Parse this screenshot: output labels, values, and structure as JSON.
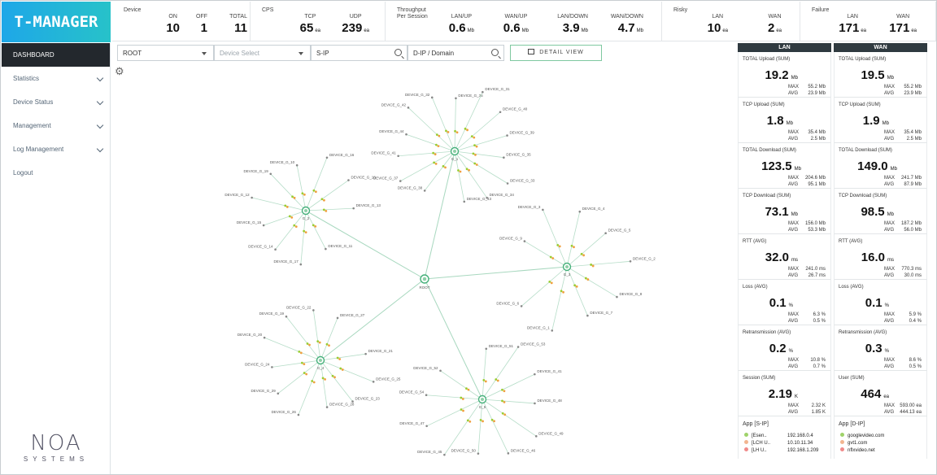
{
  "app": {
    "logo": "T-MANAGER",
    "company_mark": "NOA",
    "company_sub": "SYSTEMS"
  },
  "sidebar": {
    "items": [
      {
        "label": "DASHBOARD",
        "active": true,
        "chevron": false
      },
      {
        "label": "Statistics",
        "chevron": true
      },
      {
        "label": "Device Status",
        "chevron": true
      },
      {
        "label": "Management",
        "chevron": true
      },
      {
        "label": "Log Management",
        "chevron": true
      },
      {
        "label": "Logout",
        "chevron": false
      }
    ]
  },
  "summary": {
    "device": {
      "title": "Device",
      "stats": [
        {
          "label": "ON",
          "value": "10"
        },
        {
          "label": "OFF",
          "value": "1"
        },
        {
          "label": "TOTAL",
          "value": "11"
        }
      ]
    },
    "cps": {
      "title": "CPS",
      "stats": [
        {
          "label": "TCP",
          "value": "65",
          "unit": "ea"
        },
        {
          "label": "UDP",
          "value": "239",
          "unit": "ea"
        }
      ]
    },
    "throughput": {
      "title": "Throughput\nPer Session",
      "stats": [
        {
          "label": "LAN/UP",
          "value": "0.6",
          "unit": "Mb"
        },
        {
          "label": "WAN/UP",
          "value": "0.6",
          "unit": "Mb"
        },
        {
          "label": "LAN/DOWN",
          "value": "3.9",
          "unit": "Mb"
        },
        {
          "label": "WAN/DOWN",
          "value": "4.7",
          "unit": "Mb"
        }
      ]
    },
    "risky": {
      "title": "Risky",
      "stats": [
        {
          "label": "LAN",
          "value": "10",
          "unit": "ea"
        },
        {
          "label": "WAN",
          "value": "2",
          "unit": "ea"
        }
      ]
    },
    "failure": {
      "title": "Failure",
      "stats": [
        {
          "label": "LAN",
          "value": "171",
          "unit": "ea"
        },
        {
          "label": "WAN",
          "value": "171",
          "unit": "ea"
        }
      ]
    }
  },
  "filters": {
    "root": "ROOT",
    "device_select": "Device Select",
    "sip": "S-IP",
    "dip": "D-IP / Domain",
    "detail_button": "DETAIL VIEW"
  },
  "topology": {
    "root_label": "ROOT",
    "hubs": [
      {
        "label": "G_1",
        "devices": [
          "DEVICE_G_38",
          "DEVICE_G_37",
          "DEVICE_G_41",
          "DEVICE_G_44",
          "DEVICE_G_42",
          "DEVICE_G_32",
          "DEVICE_G_36",
          "DEVICE_G_31",
          "DEVICE_G_40",
          "DEVICE_G_39",
          "DEVICE_G_35",
          "DEVICE_G_33",
          "DEVICE_G_34",
          "DEVICE_G_43"
        ]
      },
      {
        "label": "G_2",
        "devices": [
          "DEVICE_G_11",
          "DEVICE_G_17",
          "DEVICE_G_14",
          "DEVICE_G_15",
          "DEVICE_G_12",
          "DEVICE_G_19",
          "DEVICE_G_10",
          "DEVICE_G_16",
          "DEVICE_G_18",
          "DEVICE_G_13"
        ]
      },
      {
        "label": "G_3",
        "devices": [
          "DEVICE_G_9",
          "DEVICE_G_3",
          "DEVICE_G_4",
          "DEVICE_G_5",
          "DEVICE_G_2",
          "DEVICE_G_8",
          "DEVICE_G_7",
          "DEVICE_G_1",
          "DEVICE_G_6"
        ]
      },
      {
        "label": "G_4",
        "devices": [
          "DEVICE_G_21",
          "DEVICE_G_25",
          "DEVICE_G_23",
          "DEVICE_G_28",
          "DEVICE_G_26",
          "DEVICE_G_29",
          "DEVICE_G_24",
          "DEVICE_G_20",
          "DEVICE_G_19",
          "DEVICE_G_22",
          "DEVICE_G_27"
        ]
      },
      {
        "label": "G_5",
        "devices": [
          "DEVICE_G_51",
          "DEVICE_G_53",
          "DEVICE_G_41",
          "DEVICE_G_48",
          "DEVICE_G_49",
          "DEVICE_G_46",
          "DEVICE_G_50",
          "DEVICE_G_45",
          "DEVICE_G_47",
          "DEVICE_G_54",
          "DEVICE_G_52"
        ]
      }
    ]
  },
  "panels": {
    "lan": {
      "header": "LAN",
      "cards": [
        {
          "title": "TOTAL Upload (SUM)",
          "value": "19.2",
          "unit": "Mb",
          "max": "55.2 Mb",
          "avg": "23.9 Mb"
        },
        {
          "title": "TCP Upload (SUM)",
          "value": "1.8",
          "unit": "Mb",
          "max": "35.4 Mb",
          "avg": "2.5 Mb"
        },
        {
          "title": "TOTAL Download (SUM)",
          "value": "123.5",
          "unit": "Mb",
          "max": "204.6 Mb",
          "avg": "95.1 Mb"
        },
        {
          "title": "TCP Download (SUM)",
          "value": "73.1",
          "unit": "Mb",
          "max": "156.0 Mb",
          "avg": "53.3 Mb"
        },
        {
          "title": "RTT (AVG)",
          "value": "32.0",
          "unit": "ms",
          "max": "241.0 ms",
          "avg": "26.7 ms"
        },
        {
          "title": "Loss (AVG)",
          "value": "0.1",
          "unit": "%",
          "max": "6.3 %",
          "avg": "0.5 %"
        },
        {
          "title": "Retransmission (AVG)",
          "value": "0.2",
          "unit": "%",
          "max": "10.8 %",
          "avg": "0.7 %"
        },
        {
          "title": "Session (SUM)",
          "value": "2.19",
          "unit": "K",
          "max": "2.32 K",
          "avg": "1.85 K"
        }
      ],
      "app": {
        "title": "App [S-IP]",
        "rows": [
          {
            "name": "[Esen..",
            "ip": "192.168.0.4",
            "color": "#9fd36a"
          },
          {
            "name": "[LCH U..",
            "ip": "10.10.11.34",
            "color": "#f2b590"
          },
          {
            "name": "[LH U..",
            "ip": "192.168.1.209",
            "color": "#f08a8a"
          }
        ]
      }
    },
    "wan": {
      "header": "WAN",
      "cards": [
        {
          "title": "TOTAL Upload (SUM)",
          "value": "19.5",
          "unit": "Mb",
          "max": "55.2 Mb",
          "avg": "23.9 Mb"
        },
        {
          "title": "TCP Upload (SUM)",
          "value": "1.9",
          "unit": "Mb",
          "max": "35.4 Mb",
          "avg": "2.5 Mb"
        },
        {
          "title": "TOTAL Download (SUM)",
          "value": "149.0",
          "unit": "Mb",
          "max": "241.7 Mb",
          "avg": "87.9 Mb"
        },
        {
          "title": "TCP Download (SUM)",
          "value": "98.5",
          "unit": "Mb",
          "max": "187.2 Mb",
          "avg": "56.0 Mb"
        },
        {
          "title": "RTT (AVG)",
          "value": "16.0",
          "unit": "ms",
          "max": "770.3 ms",
          "avg": "30.0 ms"
        },
        {
          "title": "Loss (AVG)",
          "value": "0.1",
          "unit": "%",
          "max": "5.9 %",
          "avg": "0.4 %"
        },
        {
          "title": "Retransmission (AVG)",
          "value": "0.3",
          "unit": "%",
          "max": "8.6 %",
          "avg": "0.5 %"
        },
        {
          "title": "User (SUM)",
          "value": "464",
          "unit": "ea",
          "max": "593.00 ea",
          "avg": "444.13 ea"
        }
      ],
      "app": {
        "title": "App [D-IP]",
        "rows": [
          {
            "name": "googlevideo.com",
            "ip": "",
            "color": "#9fd36a"
          },
          {
            "name": "gvt1.com",
            "ip": "",
            "color": "#f2b590"
          },
          {
            "name": "nflxvideo.net",
            "ip": "",
            "color": "#f08a8a"
          }
        ]
      }
    }
  },
  "labels": {
    "max": "MAX",
    "avg": "AVG"
  }
}
